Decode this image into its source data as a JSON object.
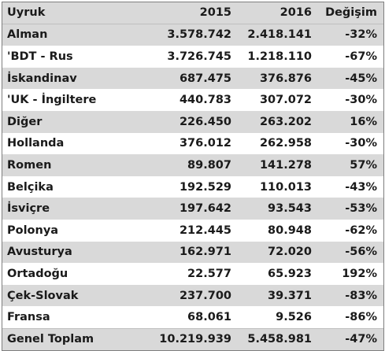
{
  "header": {
    "col1": "Uyruk",
    "col2": "2015",
    "col3": "2016",
    "col4": "Değişim"
  },
  "rows": [
    {
      "name": "Alman",
      "y2015": "3.578.742",
      "y2016": "2.418.141",
      "change": "-32%"
    },
    {
      "name": "'BDT - Rus",
      "y2015": "3.726.745",
      "y2016": "1.218.110",
      "change": "-67%"
    },
    {
      "name": "İskandinav",
      "y2015": "687.475",
      "y2016": "376.876",
      "change": "-45%"
    },
    {
      "name": "'UK - İngiltere",
      "y2015": "440.783",
      "y2016": "307.072",
      "change": "-30%"
    },
    {
      "name": "Diğer",
      "y2015": "226.450",
      "y2016": "263.202",
      "change": "16%"
    },
    {
      "name": "Hollanda",
      "y2015": "376.012",
      "y2016": "262.958",
      "change": "-30%"
    },
    {
      "name": "Romen",
      "y2015": "89.807",
      "y2016": "141.278",
      "change": "57%"
    },
    {
      "name": "Belçika",
      "y2015": "192.529",
      "y2016": "110.013",
      "change": "-43%"
    },
    {
      "name": "İsviçre",
      "y2015": "197.642",
      "y2016": "93.543",
      "change": "-53%"
    },
    {
      "name": "Polonya",
      "y2015": "212.445",
      "y2016": "80.948",
      "change": "-62%"
    },
    {
      "name": "Avusturya",
      "y2015": "162.971",
      "y2016": "72.020",
      "change": "-56%"
    },
    {
      "name": "Ortadoğu",
      "y2015": "22.577",
      "y2016": "65.923",
      "change": "192%"
    },
    {
      "name": "Çek-Slovak",
      "y2015": "237.700",
      "y2016": "39.371",
      "change": "-83%"
    },
    {
      "name": "Fransa",
      "y2015": "68.061",
      "y2016": "9.526",
      "change": "-86%"
    }
  ],
  "total": {
    "name": "Genel Toplam",
    "y2015": "10.219.939",
    "y2016": "5.458.981",
    "change": "-47%"
  },
  "colors": {
    "shade": "#d9d9d9",
    "border": "#7f7f7f"
  }
}
